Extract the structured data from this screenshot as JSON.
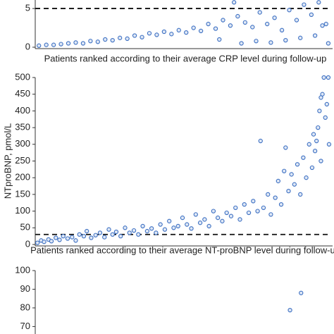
{
  "chart_data": [
    {
      "type": "scatter",
      "xlabel": "Patients ranked according to their average CRP level during follow-up",
      "x": [
        5,
        15,
        25,
        35,
        45,
        55,
        65,
        75,
        85,
        95,
        105,
        115,
        125,
        135,
        145,
        155,
        165,
        175,
        185,
        195,
        205,
        215,
        225,
        235,
        245,
        255,
        265,
        275,
        285,
        295,
        305,
        315,
        325,
        335,
        345,
        355,
        365,
        375,
        385,
        395,
        398,
        390,
        380,
        360,
        340,
        320,
        300,
        280,
        270,
        250
      ],
      "values": [
        0.2,
        0.3,
        0.3,
        0.4,
        0.5,
        0.6,
        0.5,
        0.8,
        0.7,
        1.0,
        0.9,
        1.2,
        1.1,
        1.5,
        1.3,
        1.8,
        1.6,
        2.0,
        1.7,
        2.2,
        1.9,
        2.5,
        2.1,
        3.0,
        2.4,
        3.5,
        2.8,
        4.0,
        3.2,
        2.6,
        4.5,
        3.0,
        3.8,
        2.2,
        4.8,
        3.5,
        5.5,
        4.2,
        5.8,
        3.0,
        0.5,
        2.8,
        1.5,
        1.2,
        0.9,
        0.6,
        0.8,
        0.5,
        5.8,
        1.0
      ],
      "xlim": [
        0,
        400
      ],
      "ylim": [
        0,
        6.1
      ],
      "yticks": [
        0,
        5
      ],
      "reference_line": 5
    },
    {
      "type": "scatter",
      "xlabel": "Patients ranked according to their average NT-proBNP level during follow-up",
      "ylabel": "NTproBNP, pmol/L",
      "x": [
        3,
        8,
        12,
        18,
        22,
        28,
        33,
        38,
        44,
        50,
        55,
        60,
        66,
        70,
        76,
        82,
        88,
        94,
        100,
        105,
        110,
        116,
        122,
        128,
        134,
        140,
        146,
        152,
        158,
        164,
        170,
        176,
        182,
        188,
        194,
        200,
        206,
        212,
        218,
        224,
        230,
        236,
        242,
        248,
        254,
        260,
        266,
        272,
        278,
        284,
        290,
        296,
        302,
        306,
        310,
        316,
        320,
        326,
        330,
        334,
        338,
        340,
        344,
        348,
        352,
        356,
        360,
        364,
        368,
        372,
        376,
        378,
        380,
        384,
        386,
        388,
        390,
        392,
        394,
        396,
        398,
        399,
        388,
        382
      ],
      "values": [
        5,
        12,
        8,
        15,
        10,
        20,
        14,
        25,
        18,
        22,
        12,
        30,
        25,
        40,
        20,
        28,
        35,
        22,
        45,
        30,
        38,
        25,
        50,
        35,
        42,
        30,
        55,
        40,
        48,
        35,
        60,
        45,
        70,
        50,
        55,
        80,
        60,
        48,
        90,
        65,
        75,
        55,
        100,
        80,
        70,
        95,
        85,
        110,
        75,
        120,
        95,
        130,
        100,
        310,
        110,
        150,
        90,
        140,
        190,
        120,
        220,
        290,
        160,
        210,
        180,
        240,
        150,
        260,
        200,
        300,
        230,
        330,
        280,
        350,
        400,
        250,
        450,
        500,
        380,
        420,
        500,
        300,
        440,
        310
      ],
      "xlim": [
        0,
        400
      ],
      "ylim": [
        0,
        500
      ],
      "yticks": [
        0,
        50,
        100,
        150,
        200,
        250,
        300,
        350,
        400,
        450,
        500
      ],
      "reference_line": 30
    },
    {
      "type": "scatter",
      "x": [
        346,
        361
      ],
      "values": [
        78.8,
        88
      ],
      "xlim": [
        0,
        400
      ],
      "ylim": [
        66,
        100
      ],
      "yticks": [
        70,
        80,
        90,
        100
      ]
    }
  ]
}
